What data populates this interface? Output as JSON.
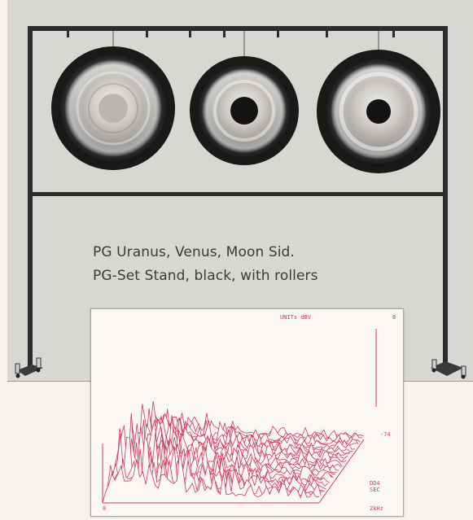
{
  "caption": {
    "line1": "PG Uranus, Venus, Moon Sid.",
    "line2": "PG-Set Stand, black, with rollers"
  },
  "plot": {
    "units_label": "UNITs dBV",
    "top_right_value": "8",
    "side_value": "-74",
    "corner_label_line1": "DD4",
    "corner_label_line2": "SEC",
    "x_start": "0",
    "x_end": "2kHz"
  },
  "colors": {
    "background": "#f6f3ee",
    "photo_bg": "#d9d7d3",
    "stand_frame": "#2c2c2c",
    "plot_trace": "#cf3a5c"
  },
  "image": {
    "gongs": [
      {
        "name": "gong-uranus-icon"
      },
      {
        "name": "gong-venus-icon"
      },
      {
        "name": "gong-moon-icon"
      }
    ]
  }
}
